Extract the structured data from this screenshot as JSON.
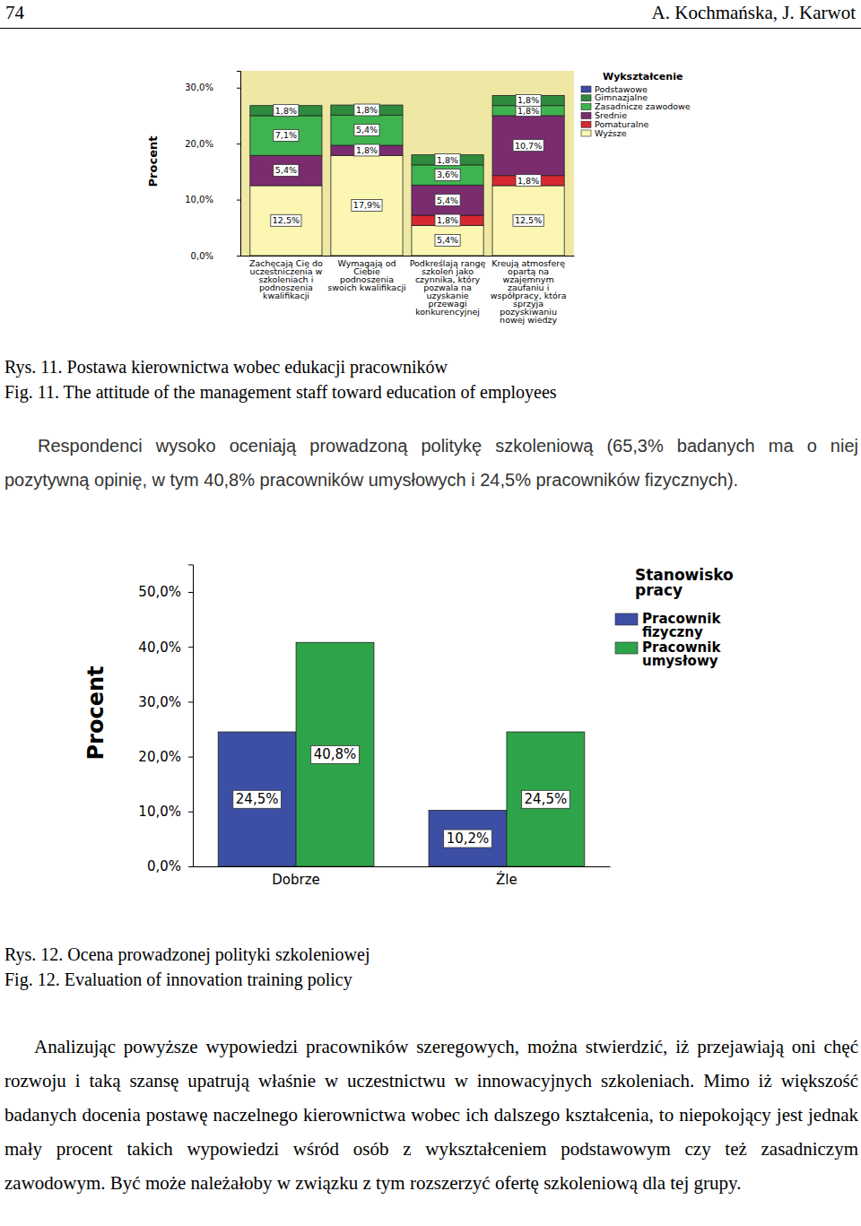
{
  "header": {
    "page_number": "74",
    "authors": "A. Kochmańska, J. Karwot"
  },
  "figures": [
    {
      "caption_pl": "Rys. 11. Postawa kierownictwa wobec edukacji pracowników",
      "caption_en": "Fig. 11. The attitude of the management staff toward education of employees"
    },
    {
      "caption_pl": "Rys. 12. Ocena prowadzonej polityki szkoleniowej",
      "caption_en": "Fig. 12. Evaluation of innovation training policy"
    }
  ],
  "paragraphs": [
    "Respondenci wysoko oceniają prowadzoną politykę szkoleniową (65,3% badanych ma o niej pozytywną opinię, w tym 40,8% pracowników umysłowych i 24,5% pracowników fizycznych).",
    "Analizując powyższe wypowiedzi pracowników szeregowych, można stwierdzić, iż przejawiają oni chęć rozwoju i taką szansę upatrują właśnie w uczestnictwu w innowacyjnych szkoleniach. Mimo iż większość badanych docenia postawę naczelnego kierownictwa wobec ich dalszego kształcenia, to niepokojący jest jednak mały procent takich wypowiedzi wśród osób z wykształceniem podstawowym czy też zasadniczym zawodowym. Być może należałoby w związku z tym rozszerzyć ofertę szkoleniową dla tej grupy."
  ],
  "chart_data": [
    {
      "type": "bar",
      "stacked": true,
      "data_labels": true,
      "grid": false,
      "legend": "right",
      "legend_title": "Wykształcenie",
      "y_label": "Procent",
      "categories": [
        "Zachęcają Cię do uczestniczenia w szkoleniach i podnoszenia kwalifikacji",
        "Wymagają od Ciebie podnoszenia swoich kwalifikacji",
        "Podkreślają rangę szkoleń jako czynnika, który pozwala na uzyskanie przewagi konkurencyjnej",
        "Kreują atmosferę opartą na wzajemnym zaufaniu i współpracy, która sprzyja pozyskiwaniu nowej wiedzy"
      ],
      "ylim": [
        0,
        33
      ],
      "yticks": [
        {
          "value": 0,
          "label": "0,0%"
        },
        {
          "value": 10,
          "label": "10,0%"
        },
        {
          "value": 20,
          "label": "20,0%"
        },
        {
          "value": 30,
          "label": "30,0%"
        }
      ],
      "series": [
        {
          "name": "Podstawowe",
          "color": "#3b4ba6",
          "values": [
            null,
            null,
            null,
            null
          ],
          "value_labels": [
            null,
            null,
            null,
            null
          ]
        },
        {
          "name": "Gimnazjalne",
          "color": "#2e8b3e",
          "values": [
            1.8,
            1.8,
            1.8,
            1.8
          ],
          "value_labels": [
            "1,8%",
            "1,8%",
            "1,8%",
            "1,8%"
          ]
        },
        {
          "name": "Zasadnicze zawodowe",
          "color": "#3fb34f",
          "values": [
            7.1,
            5.4,
            3.6,
            1.8
          ],
          "value_labels": [
            "7,1%",
            "5,4%",
            "3,6%",
            "1,8%"
          ]
        },
        {
          "name": "Średnie",
          "color": "#7b2c6f",
          "values": [
            5.4,
            1.8,
            5.4,
            10.7
          ],
          "value_labels": [
            "5,4%",
            "1,8%",
            "5,4%",
            "10,7%"
          ]
        },
        {
          "name": "Pomaturalne",
          "color": "#d8282f",
          "values": [
            null,
            null,
            1.8,
            1.8
          ],
          "value_labels": [
            null,
            null,
            "1,8%",
            "1,8%"
          ]
        },
        {
          "name": "Wyższe",
          "color": "#fbf7b3",
          "values": [
            12.5,
            17.9,
            5.4,
            12.5
          ],
          "value_labels": [
            "12,5%",
            "17,9%",
            "5,4%",
            "12,5%"
          ]
        }
      ]
    },
    {
      "type": "bar",
      "data_labels": true,
      "grid": false,
      "legend": "right",
      "legend_title": "Stanowisko pracy",
      "y_label": "Procent",
      "categories": [
        "Dobrze",
        "Źle"
      ],
      "ylim": [
        0,
        55
      ],
      "yticks": [
        {
          "value": 0,
          "label": "0,0%"
        },
        {
          "value": 10,
          "label": "10,0%"
        },
        {
          "value": 20,
          "label": "20,0%"
        },
        {
          "value": 30,
          "label": "30,0%"
        },
        {
          "value": 40,
          "label": "40,0%"
        },
        {
          "value": 50,
          "label": "50,0%"
        }
      ],
      "series": [
        {
          "name": "Pracownik fizyczny",
          "color": "#3c4fa5",
          "values": [
            24.5,
            10.2
          ],
          "value_labels": [
            "24,5%",
            "10,2%"
          ]
        },
        {
          "name": "Pracownik umysłowy",
          "color": "#2ea44a",
          "values": [
            40.8,
            24.5
          ],
          "value_labels": [
            "40,8%",
            "24,5%"
          ]
        }
      ]
    }
  ]
}
